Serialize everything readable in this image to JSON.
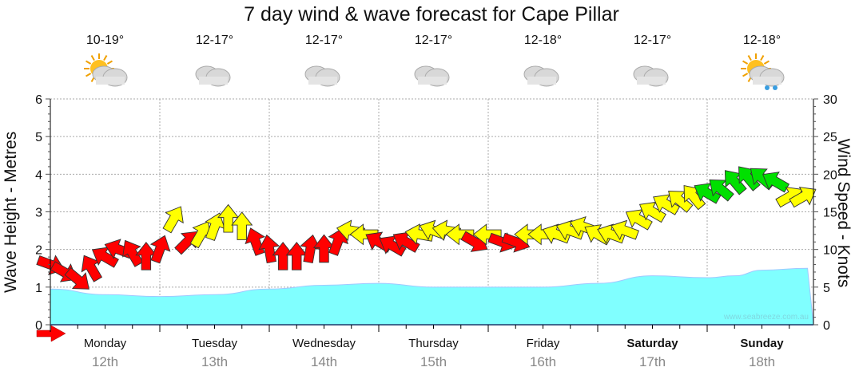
{
  "chart_data": {
    "type": "line",
    "title": "7 day wind & wave forecast for Cape Pillar",
    "ylabel_left": "Wave Height - Metres",
    "ylabel_right": "Wind Speed - Knots",
    "ylim_left": [
      0,
      6
    ],
    "ylim_right": [
      0,
      30
    ],
    "yticks_left": [
      "0",
      "1",
      "2",
      "3",
      "4",
      "5",
      "6"
    ],
    "yticks_right": [
      "0",
      "5",
      "10",
      "15",
      "20",
      "25",
      "30"
    ],
    "grid": true,
    "watermark": "www.seabreeze.com.au",
    "days": [
      {
        "name": "Monday",
        "date": "12th",
        "bold": false,
        "temp": "10-19°",
        "icon": "partly-cloudy"
      },
      {
        "name": "Tuesday",
        "date": "13th",
        "bold": false,
        "temp": "12-17°",
        "icon": "cloudy"
      },
      {
        "name": "Wednesday",
        "date": "14th",
        "bold": false,
        "temp": "12-17°",
        "icon": "cloudy"
      },
      {
        "name": "Thursday",
        "date": "15th",
        "bold": false,
        "temp": "12-17°",
        "icon": "cloudy"
      },
      {
        "name": "Friday",
        "date": "16th",
        "bold": false,
        "temp": "12-18°",
        "icon": "cloudy"
      },
      {
        "name": "Saturday",
        "date": "17th",
        "bold": true,
        "temp": "12-17°",
        "icon": "cloudy"
      },
      {
        "name": "Sunday",
        "date": "18th",
        "bold": true,
        "temp": "12-18°",
        "icon": "shower"
      }
    ],
    "wave_series": {
      "name": "Wave height (m)",
      "hours": [
        0,
        12,
        24,
        36,
        48,
        60,
        72,
        84,
        96,
        108,
        120,
        132,
        144,
        150,
        156,
        166
      ],
      "values": [
        0.95,
        0.8,
        0.75,
        0.8,
        0.95,
        1.05,
        1.1,
        1.0,
        1.0,
        1.0,
        1.1,
        1.3,
        1.25,
        1.3,
        1.45,
        1.5
      ]
    },
    "wind_series": {
      "name": "Wind (knots)",
      "step_hours": 3,
      "speed": [
        8,
        7,
        6,
        7.5,
        9,
        10,
        9.5,
        9,
        10,
        14,
        11,
        12,
        13,
        14,
        13,
        11,
        10,
        9,
        9,
        10,
        10,
        11,
        12.5,
        12,
        11,
        10.5,
        11,
        12,
        12.5,
        12.5,
        12,
        11,
        12,
        11,
        11,
        12,
        12,
        12,
        12.5,
        13,
        12,
        12,
        12.5,
        14,
        15,
        16,
        16.5,
        17,
        17.5,
        18,
        19,
        19.5,
        19.5,
        19,
        17,
        17
      ],
      "direction_deg": [
        110,
        120,
        130,
        330,
        300,
        290,
        330,
        0,
        20,
        30,
        45,
        30,
        20,
        0,
        0,
        340,
        350,
        0,
        0,
        10,
        0,
        20,
        280,
        270,
        300,
        300,
        300,
        280,
        290,
        280,
        270,
        120,
        270,
        110,
        110,
        270,
        270,
        290,
        290,
        290,
        300,
        290,
        290,
        300,
        300,
        300,
        310,
        320,
        300,
        310,
        320,
        320,
        310,
        300,
        60,
        60
      ],
      "color": [
        "red",
        "red",
        "red",
        "red",
        "red",
        "red",
        "red",
        "red",
        "red",
        "yellow",
        "red",
        "yellow",
        "yellow",
        "yellow",
        "yellow",
        "red",
        "red",
        "red",
        "red",
        "red",
        "red",
        "red",
        "yellow",
        "yellow",
        "red",
        "red",
        "red",
        "yellow",
        "yellow",
        "yellow",
        "yellow",
        "red",
        "yellow",
        "red",
        "red",
        "yellow",
        "yellow",
        "yellow",
        "yellow",
        "yellow",
        "yellow",
        "yellow",
        "yellow",
        "yellow",
        "yellow",
        "yellow",
        "yellow",
        "yellow",
        "green",
        "green",
        "green",
        "green",
        "green",
        "green",
        "yellow",
        "yellow"
      ]
    },
    "colors": {
      "red": "#ff0000",
      "yellow": "#ffff00",
      "green": "#00e000",
      "wave": "#80ffff",
      "grid": "#aaaaaa"
    }
  }
}
